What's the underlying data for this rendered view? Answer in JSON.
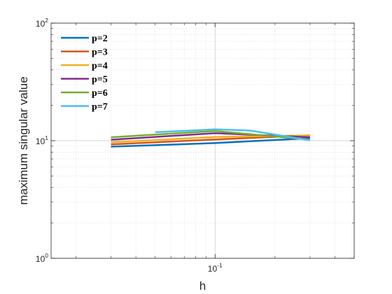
{
  "chart_data": {
    "type": "line",
    "title": "",
    "xlabel": "h",
    "ylabel": "maximum singular value",
    "xscale": "log",
    "yscale": "log",
    "xlim": [
      0.015,
      0.5
    ],
    "ylim": [
      1,
      100
    ],
    "grid": true,
    "minor_grid": true,
    "legend_position": "top-left",
    "x_tick_labels": [
      {
        "value": 0.1,
        "base": "10",
        "exp": "-1"
      }
    ],
    "y_tick_labels": [
      {
        "value": 1,
        "base": "10",
        "exp": "0"
      },
      {
        "value": 10,
        "base": "10",
        "exp": "1"
      },
      {
        "value": 100,
        "base": "10",
        "exp": "2"
      }
    ],
    "series": [
      {
        "name": "p=2",
        "color": "#0072BD",
        "x": [
          0.03,
          0.1,
          0.3
        ],
        "y": [
          8.9,
          9.55,
          10.5
        ]
      },
      {
        "name": "p=3",
        "color": "#D95319",
        "x": [
          0.03,
          0.1,
          0.3
        ],
        "y": [
          9.3,
          10.25,
          11.1
        ]
      },
      {
        "name": "p=4",
        "color": "#EDB120",
        "x": [
          0.03,
          0.1,
          0.3
        ],
        "y": [
          9.7,
          10.75,
          11.1
        ]
      },
      {
        "name": "p=5",
        "color": "#7E2F8E",
        "x": [
          0.03,
          0.1,
          0.3
        ],
        "y": [
          10.2,
          11.6,
          10.7
        ]
      },
      {
        "name": "p=6",
        "color": "#77AC30",
        "x": [
          0.03,
          0.1,
          0.3
        ],
        "y": [
          10.7,
          12.1,
          10.2
        ]
      },
      {
        "name": "p=7",
        "color": "#4DBEEE",
        "x": [
          0.05,
          0.1,
          0.15,
          0.3
        ],
        "y": [
          11.8,
          12.5,
          12.2,
          10.1
        ]
      }
    ]
  }
}
